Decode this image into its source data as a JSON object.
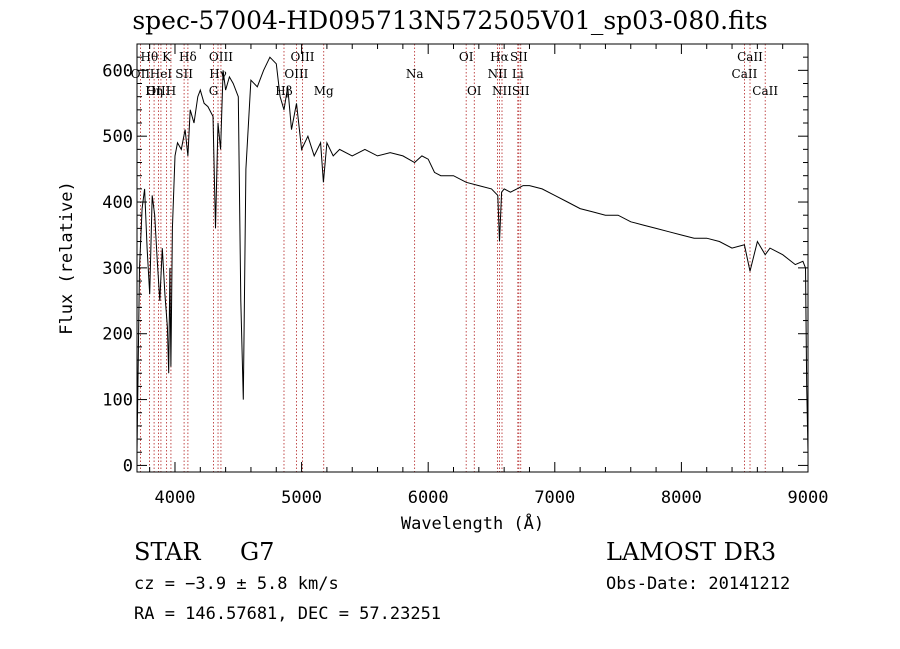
{
  "chart_data": {
    "type": "line",
    "title": "spec-57004-HD095713N572505V01_sp03-080.fits",
    "xlabel": "Wavelength (Å)",
    "ylabel": "Flux (relative)",
    "xlim": [
      3700,
      9000
    ],
    "ylim": [
      -10,
      640
    ],
    "xticks": [
      4000,
      5000,
      6000,
      7000,
      8000,
      9000
    ],
    "yticks": [
      0,
      100,
      200,
      300,
      400,
      500,
      600
    ],
    "grid": false,
    "series": [
      {
        "x": [
          3700,
          3720,
          3740,
          3760,
          3780,
          3800,
          3820,
          3840,
          3860,
          3880,
          3900,
          3920,
          3940,
          3950,
          3960,
          3968,
          3980,
          4000,
          4020,
          4050,
          4080,
          4102,
          4120,
          4150,
          4180,
          4200,
          4230,
          4260,
          4300,
          4320,
          4340,
          4360,
          4380,
          4400,
          4430,
          4460,
          4500,
          4520,
          4540,
          4560,
          4600,
          4650,
          4700,
          4750,
          4800,
          4830,
          4861,
          4890,
          4920,
          4960,
          5000,
          5050,
          5100,
          5150,
          5172,
          5200,
          5250,
          5300,
          5400,
          5500,
          5600,
          5700,
          5800,
          5893,
          5950,
          6000,
          6050,
          6100,
          6200,
          6300,
          6400,
          6500,
          6550,
          6563,
          6580,
          6600,
          6650,
          6700,
          6750,
          6800,
          6900,
          7000,
          7100,
          7200,
          7300,
          7400,
          7500,
          7600,
          7700,
          7800,
          7900,
          8000,
          8100,
          8200,
          8300,
          8400,
          8498,
          8542,
          8600,
          8662,
          8700,
          8800,
          8900,
          8960,
          8980,
          8990,
          9000
        ],
        "values": [
          20,
          300,
          390,
          420,
          330,
          260,
          410,
          380,
          310,
          250,
          330,
          260,
          210,
          140,
          300,
          150,
          360,
          470,
          490,
          480,
          510,
          470,
          540,
          520,
          560,
          570,
          550,
          545,
          530,
          360,
          520,
          480,
          600,
          570,
          590,
          580,
          560,
          250,
          100,
          450,
          585,
          575,
          600,
          620,
          610,
          560,
          540,
          575,
          510,
          550,
          480,
          500,
          470,
          490,
          430,
          490,
          470,
          480,
          470,
          480,
          470,
          475,
          470,
          460,
          470,
          465,
          445,
          440,
          440,
          430,
          425,
          420,
          410,
          340,
          415,
          420,
          415,
          420,
          425,
          425,
          420,
          410,
          400,
          390,
          385,
          380,
          380,
          370,
          365,
          360,
          355,
          350,
          345,
          345,
          340,
          330,
          335,
          295,
          340,
          320,
          330,
          320,
          305,
          310,
          300,
          120,
          20
        ]
      }
    ],
    "lines": [
      {
        "label": "Hθ",
        "x": 3798,
        "row": 0
      },
      {
        "label": "OII",
        "x": 3727,
        "row": 1
      },
      {
        "label": "OIII",
        "x": 3869,
        "row": 2
      },
      {
        "label": "K",
        "x": 3934,
        "row": 0
      },
      {
        "label": "HeI",
        "x": 3889,
        "row": 1
      },
      {
        "label": "Hη",
        "x": 3835,
        "row": 2
      },
      {
        "label": "Hδ",
        "x": 4102,
        "row": 0
      },
      {
        "label": "SII",
        "x": 4072,
        "row": 1
      },
      {
        "label": "H",
        "x": 3968,
        "row": 2
      },
      {
        "label": "OIII",
        "x": 4363,
        "row": 0
      },
      {
        "label": "Hγ",
        "x": 4340,
        "row": 1
      },
      {
        "label": "G",
        "x": 4305,
        "row": 2
      },
      {
        "label": "OIII",
        "x": 5007,
        "row": 0
      },
      {
        "label": "OIII",
        "x": 4959,
        "row": 1
      },
      {
        "label": "Hβ",
        "x": 4861,
        "row": 2
      },
      {
        "label": "Mg",
        "x": 5175,
        "row": 2
      },
      {
        "label": "Na",
        "x": 5893,
        "row": 1
      },
      {
        "label": "OI",
        "x": 6300,
        "row": 0
      },
      {
        "label": "OI",
        "x": 6364,
        "row": 2
      },
      {
        "label": "Hα",
        "x": 6563,
        "row": 0
      },
      {
        "label": "SII",
        "x": 6716,
        "row": 0
      },
      {
        "label": "NII",
        "x": 6548,
        "row": 1
      },
      {
        "label": "Li",
        "x": 6708,
        "row": 1
      },
      {
        "label": "NII",
        "x": 6583,
        "row": 2
      },
      {
        "label": "SII",
        "x": 6731,
        "row": 2
      },
      {
        "label": "CaII",
        "x": 8542,
        "row": 0
      },
      {
        "label": "CaII",
        "x": 8498,
        "row": 1
      },
      {
        "label": "CaII",
        "x": 8662,
        "row": 2
      }
    ]
  },
  "info": {
    "object_type": "STAR",
    "subclass": "G7",
    "survey": "LAMOST DR3",
    "redshift": "cz = −3.9 ± 5.8 km/s",
    "obs_date": "Obs-Date: 20141212",
    "coords": "RA = 146.57681, DEC =  57.23251"
  }
}
